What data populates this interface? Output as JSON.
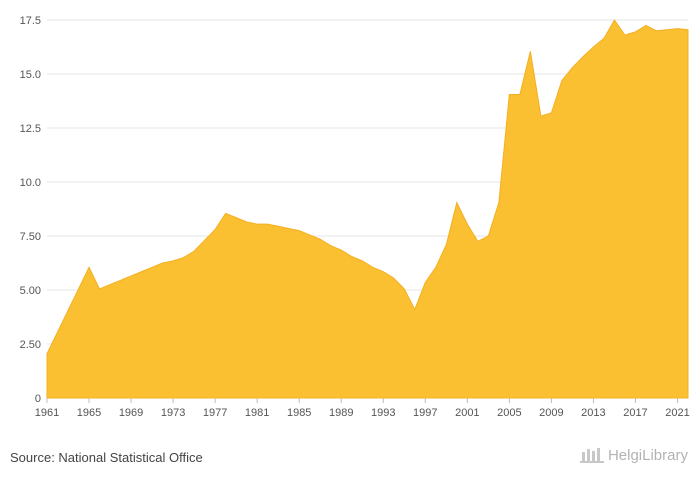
{
  "chart_data": {
    "type": "area",
    "title": "",
    "xlabel": "",
    "ylabel": "",
    "x": [
      1961,
      1962,
      1963,
      1964,
      1965,
      1966,
      1967,
      1968,
      1969,
      1970,
      1971,
      1972,
      1973,
      1974,
      1975,
      1976,
      1977,
      1978,
      1979,
      1980,
      1981,
      1982,
      1983,
      1984,
      1985,
      1986,
      1987,
      1988,
      1989,
      1990,
      1991,
      1992,
      1993,
      1994,
      1995,
      1996,
      1997,
      1998,
      1999,
      2000,
      2001,
      2002,
      2003,
      2004,
      2005,
      2006,
      2007,
      2008,
      2009,
      2010,
      2011,
      2012,
      2013,
      2014,
      2015,
      2016,
      2017,
      2018,
      2019,
      2020,
      2021,
      2022
    ],
    "values": [
      2.05,
      3.05,
      4.05,
      5.05,
      6.05,
      5.05,
      5.25,
      5.45,
      5.65,
      5.85,
      6.05,
      6.25,
      6.35,
      6.5,
      6.8,
      7.3,
      7.8,
      8.55,
      8.35,
      8.15,
      8.05,
      8.05,
      7.95,
      7.85,
      7.75,
      7.55,
      7.35,
      7.05,
      6.85,
      6.55,
      6.35,
      6.05,
      5.85,
      5.55,
      5.05,
      4.1,
      5.35,
      6.05,
      7.1,
      9.05,
      8.05,
      7.25,
      7.5,
      9.05,
      14.05,
      14.05,
      16.05,
      13.05,
      13.2,
      14.7,
      15.3,
      15.8,
      16.25,
      16.65,
      17.5,
      16.8,
      16.95,
      17.25,
      17.0,
      17.05,
      17.1,
      17.05
    ],
    "ylim": [
      0,
      17.5
    ],
    "y_ticks": [
      "0",
      "2.50",
      "5.00",
      "7.50",
      "10.0",
      "12.5",
      "15.0",
      "17.5"
    ],
    "x_ticks": [
      "1961",
      "1965",
      "1969",
      "1973",
      "1977",
      "1981",
      "1985",
      "1989",
      "1993",
      "1997",
      "2001",
      "2005",
      "2009",
      "2013",
      "2017",
      "2021"
    ],
    "grid": "horizontal",
    "fill_color": "#FBBF32",
    "line_color": "#F3B022"
  },
  "footer": {
    "source": "Source: National Statistical Office",
    "brand": "HelgiLibrary"
  }
}
